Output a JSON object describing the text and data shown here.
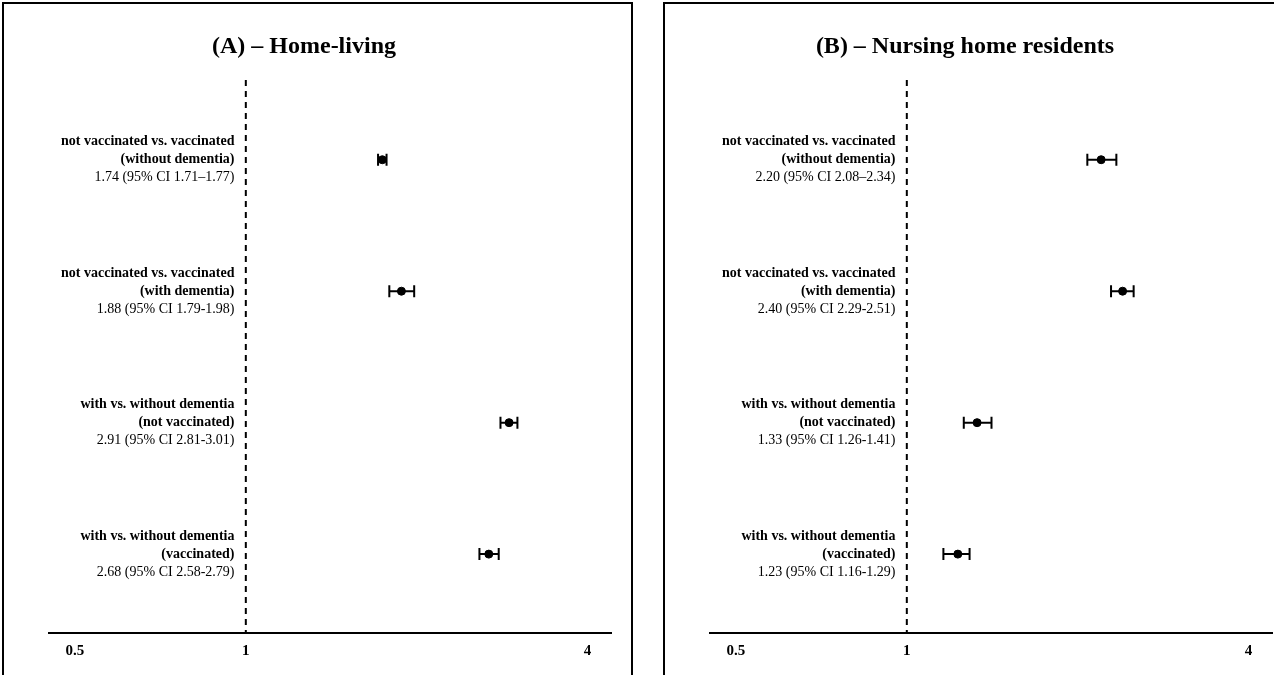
{
  "chart_data": [
    {
      "type": "scatter",
      "title": "(A) – Home-living",
      "orientation": "horizontal",
      "log": "x",
      "marker": "circle",
      "color": "#000000",
      "categories": [
        "not vaccinated vs. vaccinated\n(without dementia)\n1.74 (95% CI 1.71–1.77)",
        "not vaccinated vs. vaccinated\n(with dementia)\n1.88 (95% CI 1.79-1.98)",
        "with vs. without dementia\n(not vaccinated)\n2.91 (95% CI 2.81-3.01)",
        "with vs. without dementia\n(vaccinated)\n2.68 (95% CI 2.58-2.79)"
      ],
      "values": [
        1.74,
        1.88,
        2.91,
        2.68
      ],
      "errors": [
        [
          1.71,
          1.77
        ],
        [
          1.79,
          1.98
        ],
        [
          2.81,
          3.01
        ],
        [
          2.58,
          2.79
        ]
      ],
      "xlim": [
        0.45,
        4.4
      ],
      "xticks": [
        0.5,
        1,
        4
      ],
      "ref_lines": [
        {
          "axis": "x",
          "value": 1,
          "line_style": "dashed"
        }
      ]
    },
    {
      "type": "scatter",
      "title": "(B) – Nursing home residents",
      "orientation": "horizontal",
      "log": "x",
      "marker": "circle",
      "color": "#000000",
      "categories": [
        "not vaccinated vs. vaccinated\n(without dementia)\n2.20 (95% CI 2.08–2.34)",
        "not vaccinated vs. vaccinated\n(with dementia)\n2.40 (95% CI 2.29-2.51)",
        "with vs. without dementia\n(not vaccinated)\n1.33 (95% CI 1.26-1.41)",
        "with vs. without dementia\n(vaccinated)\n1.23 (95% CI 1.16-1.29)"
      ],
      "values": [
        2.2,
        2.4,
        1.33,
        1.23
      ],
      "errors": [
        [
          2.08,
          2.34
        ],
        [
          2.29,
          2.51
        ],
        [
          1.26,
          1.41
        ],
        [
          1.16,
          1.29
        ]
      ],
      "xlim": [
        0.45,
        4.4
      ],
      "xticks": [
        0.5,
        1,
        4
      ],
      "ref_lines": [
        {
          "axis": "x",
          "value": 1,
          "line_style": "dashed"
        }
      ]
    }
  ]
}
